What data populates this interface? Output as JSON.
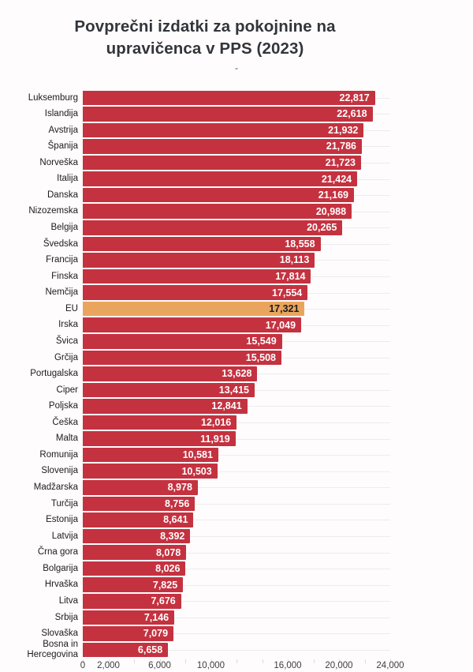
{
  "chart_data": {
    "type": "bar",
    "orientation": "horizontal",
    "title": "Povprečni izdatki za pokojnine na upravičenca v PPS (2023)",
    "subtitle": "-",
    "categories": [
      "Luksemburg",
      "Islandija",
      "Avstrija",
      "Španija",
      "Norveška",
      "Italija",
      "Danska",
      "Nizozemska",
      "Belgija",
      "Švedska",
      "Francija",
      "Finska",
      "Nemčija",
      "EU",
      "Irska",
      "Švica",
      "Grčija",
      "Portugalska",
      "Ciper",
      "Poljska",
      "Češka",
      "Malta",
      "Romunija",
      "Slovenija",
      "Madžarska",
      "Turčija",
      "Estonija",
      "Latvija",
      "Črna gora",
      "Bolgarija",
      "Hrvaška",
      "Litva",
      "Srbija",
      "Slovaška",
      "Bosna in Hercegovina"
    ],
    "values": [
      22817,
      22618,
      21932,
      21786,
      21723,
      21424,
      21169,
      20988,
      20265,
      18558,
      18113,
      17814,
      17554,
      17321,
      17049,
      15549,
      15508,
      13628,
      13415,
      12841,
      12016,
      11919,
      10581,
      10503,
      8978,
      8756,
      8641,
      8392,
      8078,
      8026,
      7825,
      7676,
      7146,
      7079,
      6658
    ],
    "value_labels": [
      "22,817",
      "22,618",
      "21,932",
      "21,786",
      "21,723",
      "21,424",
      "21,169",
      "20,988",
      "20,265",
      "18,558",
      "18,113",
      "17,814",
      "17,554",
      "17,321",
      "17,049",
      "15,549",
      "15,508",
      "13,628",
      "13,415",
      "12,841",
      "12,016",
      "11,919",
      "10,581",
      "10,503",
      "8,978",
      "8,756",
      "8,641",
      "8,392",
      "8,078",
      "8,026",
      "7,825",
      "7,676",
      "7,146",
      "7,079",
      "6,658"
    ],
    "highlight_category": "EU",
    "xlabel": "",
    "ylabel": "",
    "xlim": [
      0,
      24000
    ],
    "grid": "row-lines and minor x tick marks, no vertical gridlines",
    "legend_position": "none",
    "x_ticks": [
      {
        "value": 0,
        "label": "0"
      },
      {
        "value": 2000,
        "label": "2,000"
      },
      {
        "value": 4000,
        "label": ""
      },
      {
        "value": 6000,
        "label": "6,000"
      },
      {
        "value": 8000,
        "label": ""
      },
      {
        "value": 10000,
        "label": "10,000"
      },
      {
        "value": 12000,
        "label": ""
      },
      {
        "value": 14000,
        "label": ""
      },
      {
        "value": 16000,
        "label": "16,000"
      },
      {
        "value": 18000,
        "label": ""
      },
      {
        "value": 20000,
        "label": "20,000"
      },
      {
        "value": 22000,
        "label": ""
      },
      {
        "value": 24000,
        "label": "24,000"
      }
    ],
    "colors": {
      "bar": "#c43240",
      "highlight_bar": "#e9a55e",
      "value_text": "#ffffff",
      "highlight_value_text": "#1a1a1a",
      "row_line": "#ededed",
      "tick_mark": "#dcdcdc",
      "title_text": "#32353b",
      "label_text": "#1b1b1d",
      "axis_text": "#3e3e40",
      "background": "#fefcfc"
    }
  }
}
